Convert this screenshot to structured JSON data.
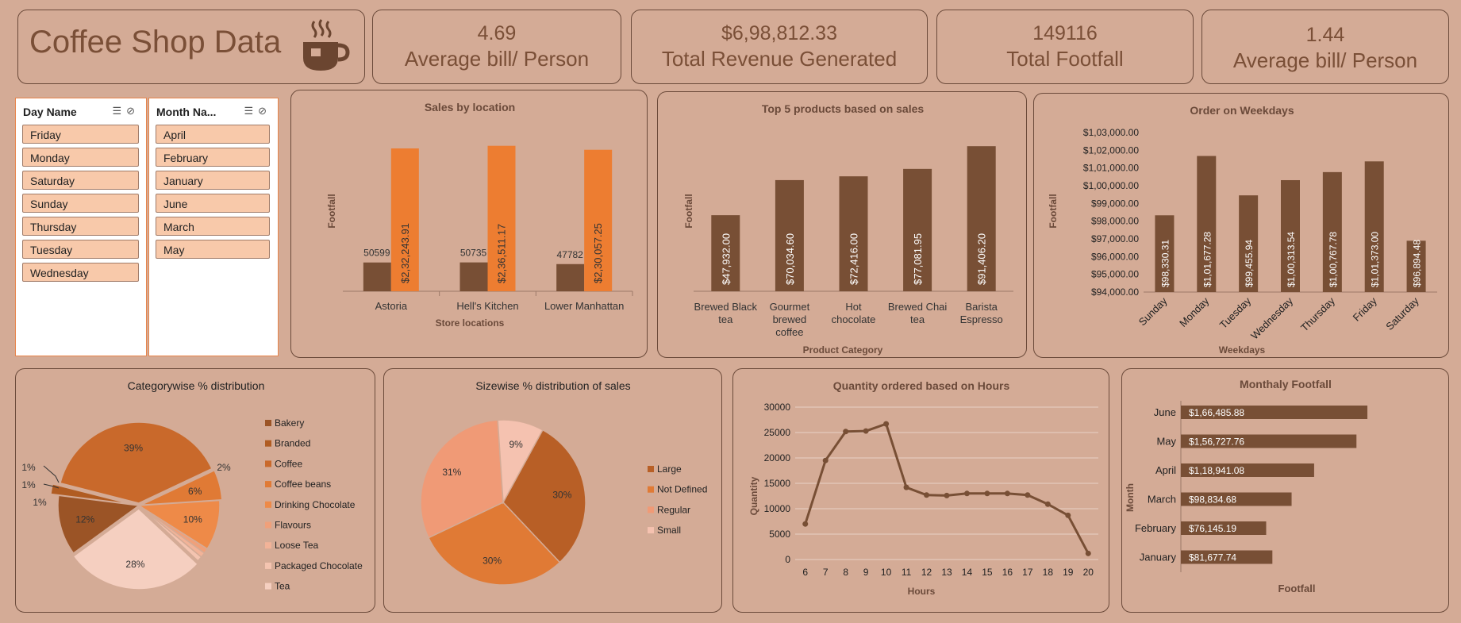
{
  "kpis": {
    "title": "Coffee Shop Data",
    "cards": [
      {
        "value": "4.69",
        "label": "Average bill/ Person"
      },
      {
        "value": "$6,98,812.33",
        "label": "Total Revenue Generated"
      },
      {
        "value": "149116",
        "label": "Total Footfall"
      },
      {
        "value": "1.44",
        "label": "Average bill/ Person"
      }
    ]
  },
  "slicers": {
    "day": {
      "header": "Day Name",
      "items": [
        "Friday",
        "Monday",
        "Saturday",
        "Sunday",
        "Thursday",
        "Tuesday",
        "Wednesday"
      ]
    },
    "month": {
      "header": "Month Na...",
      "items": [
        "April",
        "February",
        "January",
        "June",
        "March",
        "May"
      ]
    }
  },
  "colors": {
    "brown": "#784f35",
    "orange": "#ed7d31",
    "bg": "#d4ab96",
    "text": "#6b4a3a"
  },
  "chart_data": [
    {
      "id": "sales-by-location",
      "type": "bar",
      "title": "Sales by location",
      "xlabel": "Store locations",
      "ylabel": "Footfall",
      "categories": [
        "Astoria",
        "Hell's Kitchen",
        "Lower Manhattan"
      ],
      "series": [
        {
          "values": [
            50599,
            50735,
            47782
          ],
          "labels": [
            "50599",
            "50735",
            "47782"
          ]
        },
        {
          "values": [
            232243.91,
            236511.17,
            230057.25
          ],
          "labels": [
            "$2,32,243.91",
            "$2,36,511.17",
            "$2,30,057.25"
          ]
        }
      ]
    },
    {
      "id": "top-products",
      "type": "bar",
      "title": "Top 5 products based on sales",
      "xlabel": "Product Category",
      "ylabel": "Footfall",
      "categories": [
        [
          "Brewed Black",
          "tea"
        ],
        [
          "Gourmet",
          "brewed",
          "coffee"
        ],
        [
          "Hot",
          "chocolate"
        ],
        [
          "Brewed Chai",
          "tea"
        ],
        [
          "Barista",
          "Espresso"
        ]
      ],
      "values": [
        47932.0,
        70034.6,
        72416.0,
        77081.95,
        91406.2
      ],
      "labels": [
        "$47,932.00",
        "$70,034.60",
        "$72,416.00",
        "$77,081.95",
        "$91,406.20"
      ]
    },
    {
      "id": "weekday-orders",
      "type": "bar",
      "title": "Order on Weekdays",
      "xlabel": "Weekdays",
      "ylabel": "Footfall",
      "ylim": [
        94000,
        103000
      ],
      "yticks": [
        "$94,000.00",
        "$95,000.00",
        "$96,000.00",
        "$97,000.00",
        "$98,000.00",
        "$99,000.00",
        "$1,00,000.00",
        "$1,01,000.00",
        "$1,02,000.00",
        "$1,03,000.00"
      ],
      "categories": [
        "Sunday",
        "Monday",
        "Tuesday",
        "Wednesday",
        "Thursday",
        "Friday",
        "Saturday"
      ],
      "values": [
        98330.31,
        101677.28,
        99455.94,
        100313.54,
        100767.78,
        101373.0,
        96894.48
      ],
      "labels": [
        "$98,330.31",
        "$1,01,677.28",
        "$99,455.94",
        "$1,00,313.54",
        "$1,00,767.78",
        "$1,01,373.00",
        "$96,894.48"
      ]
    },
    {
      "id": "category-pie",
      "type": "pie",
      "title": "Categorywise % distribution",
      "categories": [
        "Bakery",
        "Branded",
        "Coffee",
        "Coffee beans",
        "Drinking Chocolate",
        "Flavours",
        "Loose Tea",
        "Packaged Chocolate",
        "Tea"
      ],
      "values": [
        12,
        2,
        39,
        6,
        10,
        1,
        1,
        1,
        28
      ],
      "labels": [
        "12%",
        "2%",
        "39%",
        "6%",
        "10%",
        "1%",
        "1%",
        "1%",
        "28%"
      ],
      "colors": [
        "#9b5426",
        "#b05c22",
        "#c9692b",
        "#e07a35",
        "#ee8a48",
        "#f0a07a",
        "#f2b398",
        "#f4c4b0",
        "#f5cfc0"
      ]
    },
    {
      "id": "size-pie",
      "type": "pie",
      "title": "Sizewise % distribution of sales",
      "categories": [
        "Large",
        "Not Defined",
        "Regular",
        "Small"
      ],
      "values": [
        30,
        30,
        31,
        9
      ],
      "labels": [
        "30%",
        "30%",
        "31%",
        "9%"
      ],
      "colors": [
        "#b85f26",
        "#e07a35",
        "#f09a76",
        "#f5c2b0"
      ]
    },
    {
      "id": "hourly-qty",
      "type": "line",
      "title": "Quantity ordered based on Hours",
      "xlabel": "Hours",
      "ylabel": "Quantity",
      "ylim": [
        0,
        30000
      ],
      "yticks": [
        "0",
        "5000",
        "10000",
        "15000",
        "20000",
        "25000",
        "30000"
      ],
      "x": [
        "6",
        "7",
        "8",
        "9",
        "10",
        "11",
        "12",
        "13",
        "14",
        "15",
        "16",
        "17",
        "18",
        "19",
        "20"
      ],
      "values": [
        7000,
        19500,
        25200,
        25300,
        26700,
        14200,
        12700,
        12600,
        13000,
        13000,
        13000,
        12700,
        10900,
        8700,
        1200
      ]
    },
    {
      "id": "monthly-footfall",
      "type": "bar",
      "orientation": "horizontal",
      "title": "Monthaly Footfall",
      "xlabel": "Footfall",
      "ylabel": "Month",
      "categories": [
        "June",
        "May",
        "April",
        "March",
        "February",
        "January"
      ],
      "values": [
        166485.88,
        156727.76,
        118941.08,
        98834.68,
        76145.19,
        81677.74
      ],
      "labels": [
        "$1,66,485.88",
        "$1,56,727.76",
        "$1,18,941.08",
        "$98,834.68",
        "$76,145.19",
        "$81,677.74"
      ]
    }
  ]
}
